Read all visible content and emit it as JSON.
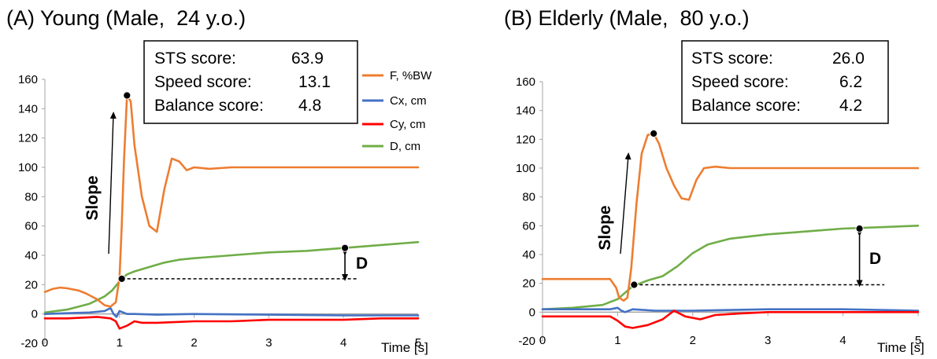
{
  "panels": [
    {
      "title": "(A) Young (Male,  24 y.o.)",
      "scores": [
        {
          "label": "STS score:",
          "value": "63.9"
        },
        {
          "label": "Speed score:",
          "value": "13.1"
        },
        {
          "label": "Balance score:",
          "value": "4.8"
        }
      ],
      "slope_label": "Slope",
      "d_label": "D",
      "xlabel": "Time [s]"
    },
    {
      "title": "(B) Elderly (Male,  80 y.o.)",
      "scores": [
        {
          "label": "STS score:",
          "value": "26.0"
        },
        {
          "label": "Speed score:",
          "value": "6.2"
        },
        {
          "label": "Balance score:",
          "value": "4.2"
        }
      ],
      "slope_label": "Slope",
      "d_label": "D",
      "xlabel": "Time [s]"
    }
  ],
  "legend": [
    "F, %BW",
    "Cx, cm",
    "Cy, cm",
    "D, cm"
  ],
  "chart_data": [
    {
      "type": "line",
      "title": "(A) Young (Male,  24 y.o.)",
      "xlabel": "Time [s]",
      "ylabel": "",
      "xlim": [
        0,
        5
      ],
      "ylim": [
        -20,
        160
      ],
      "xticks": [
        "0",
        "1",
        "2",
        "3",
        "4",
        "5"
      ],
      "yticks": [
        "-20",
        "0",
        "20",
        "40",
        "60",
        "80",
        "100",
        "120",
        "140",
        "160"
      ],
      "series": [
        {
          "name": "F, %BW",
          "color": "#ED7D31",
          "x": [
            0,
            0.1,
            0.2,
            0.3,
            0.45,
            0.55,
            0.7,
            0.8,
            0.88,
            0.95,
            1.0,
            1.03,
            1.06,
            1.1,
            1.15,
            1.2,
            1.3,
            1.4,
            1.5,
            1.6,
            1.7,
            1.8,
            1.9,
            2.0,
            2.2,
            2.5,
            3.0,
            3.5,
            4.0,
            4.5,
            5.0
          ],
          "y": [
            15,
            17,
            18,
            17.5,
            16,
            14,
            10,
            6,
            5,
            8,
            25,
            60,
            105,
            149,
            145,
            115,
            80,
            60,
            56,
            85,
            106,
            104,
            98,
            100,
            99,
            100,
            100,
            100,
            100,
            100,
            100
          ]
        },
        {
          "name": "Cx, cm",
          "color": "#4472C4",
          "x": [
            0,
            0.3,
            0.6,
            0.8,
            0.88,
            0.92,
            0.96,
            1.0,
            1.05,
            1.1,
            1.2,
            1.5,
            2.0,
            3.0,
            4.0,
            4.5,
            5.0
          ],
          "y": [
            0,
            0.5,
            1,
            2,
            4,
            0,
            -2,
            2,
            1,
            0,
            0,
            -0.5,
            0,
            -0.5,
            -1,
            -1,
            -1
          ]
        },
        {
          "name": "Cy, cm",
          "color": "#FF0000",
          "x": [
            0,
            0.3,
            0.7,
            0.88,
            0.95,
            1.0,
            1.1,
            1.2,
            1.3,
            1.5,
            2.0,
            2.5,
            3.0,
            4.0,
            4.5,
            5.0
          ],
          "y": [
            -3,
            -3,
            -2,
            -3,
            -5,
            -10,
            -8,
            -5,
            -6,
            -6,
            -5,
            -5,
            -4,
            -4,
            -3,
            -3
          ]
        },
        {
          "name": "D, cm",
          "color": "#70AD47",
          "x": [
            0,
            0.3,
            0.6,
            0.8,
            0.9,
            0.98,
            1.03,
            1.1,
            1.2,
            1.4,
            1.6,
            1.8,
            2.0,
            2.5,
            3.0,
            3.5,
            4.0,
            4.5,
            5.0
          ],
          "y": [
            1,
            3,
            7,
            12,
            16,
            21,
            24,
            27,
            29,
            32,
            35,
            37,
            38,
            40,
            42,
            43,
            45,
            47,
            49
          ]
        }
      ],
      "markers": [
        {
          "x": 1.1,
          "y": 149
        },
        {
          "x": 1.03,
          "y": 24
        },
        {
          "x": 4.02,
          "y": 45
        }
      ]
    },
    {
      "type": "line",
      "title": "(B) Elderly (Male,  80 y.o.)",
      "xlabel": "Time [s]",
      "ylabel": "",
      "xlim": [
        0,
        5
      ],
      "ylim": [
        -20,
        160
      ],
      "xticks": [
        "0",
        "1",
        "2",
        "3",
        "4",
        "5"
      ],
      "yticks": [
        "-20",
        "0",
        "20",
        "40",
        "60",
        "80",
        "100",
        "120",
        "140",
        "160"
      ],
      "series": [
        {
          "name": "F, %BW",
          "color": "#ED7D31",
          "x": [
            0,
            0.3,
            0.6,
            0.9,
            0.98,
            1.02,
            1.08,
            1.13,
            1.18,
            1.25,
            1.32,
            1.4,
            1.48,
            1.55,
            1.65,
            1.75,
            1.85,
            1.95,
            2.05,
            2.15,
            2.3,
            2.5,
            3.0,
            3.5,
            4.0,
            4.5,
            5.0
          ],
          "y": [
            23,
            23,
            23,
            23,
            17,
            10,
            8,
            10,
            30,
            75,
            110,
            123,
            124,
            117,
            100,
            88,
            79,
            78,
            92,
            100,
            101,
            100,
            100,
            100,
            100,
            100,
            100
          ]
        },
        {
          "name": "Cx, cm",
          "color": "#4472C4",
          "x": [
            0,
            0.5,
            0.9,
            1.0,
            1.05,
            1.1,
            1.2,
            1.5,
            2.0,
            3.0,
            4.0,
            5.0
          ],
          "y": [
            2,
            2,
            2,
            3,
            1,
            0,
            2,
            1,
            1,
            2,
            2,
            1
          ]
        },
        {
          "name": "Cy, cm",
          "color": "#FF0000",
          "x": [
            0,
            0.5,
            0.9,
            1.0,
            1.1,
            1.2,
            1.4,
            1.6,
            1.75,
            1.9,
            2.1,
            2.3,
            2.6,
            3.0,
            4.0,
            5.0
          ],
          "y": [
            -3,
            -3,
            -3,
            -6,
            -10,
            -11,
            -9,
            -5,
            1,
            -3,
            -5,
            -2,
            -1,
            0,
            0,
            0
          ]
        },
        {
          "name": "D, cm",
          "color": "#70AD47",
          "x": [
            0,
            0.4,
            0.8,
            1.0,
            1.2,
            1.4,
            1.6,
            1.8,
            2.0,
            2.2,
            2.5,
            3.0,
            3.5,
            4.0,
            4.5,
            5.0
          ],
          "y": [
            2,
            3,
            5,
            9,
            18,
            22,
            25,
            32,
            41,
            47,
            51,
            54,
            56,
            58,
            59,
            60
          ]
        }
      ],
      "markers": [
        {
          "x": 1.48,
          "y": 124
        },
        {
          "x": 1.22,
          "y": 19
        },
        {
          "x": 4.22,
          "y": 58
        }
      ]
    }
  ]
}
